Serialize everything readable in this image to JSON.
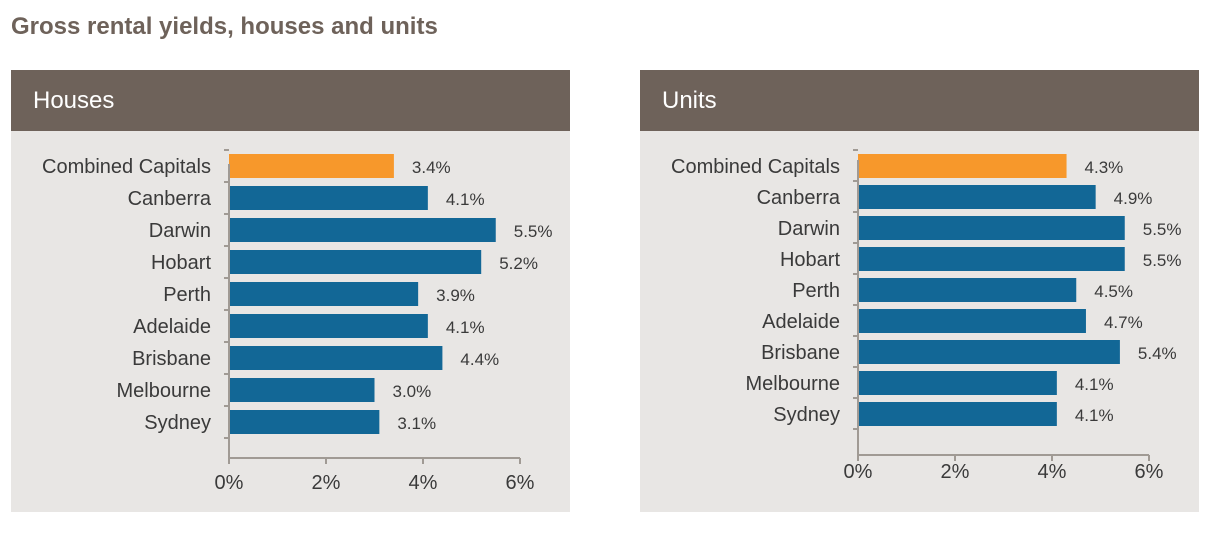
{
  "page_title": "Gross rental yields, houses and units",
  "colors": {
    "highlight": "#f7982b",
    "bar": "#126796",
    "header_bg": "#6e625a",
    "panel_bg": "#e8e6e4",
    "axis": "#a09a94"
  },
  "chart_data": [
    {
      "type": "bar",
      "orientation": "horizontal",
      "title": "Houses",
      "categories": [
        "Combined Capitals",
        "Canberra",
        "Darwin",
        "Hobart",
        "Perth",
        "Adelaide",
        "Brisbane",
        "Melbourne",
        "Sydney"
      ],
      "values": [
        3.4,
        4.1,
        5.5,
        5.2,
        3.9,
        4.1,
        4.4,
        3.0,
        3.1
      ],
      "value_labels": [
        "3.4%",
        "4.1%",
        "5.5%",
        "5.2%",
        "3.9%",
        "4.1%",
        "4.4%",
        "3.0%",
        "3.1%"
      ],
      "highlight_index": 0,
      "xlim": [
        0,
        6
      ],
      "xticks": [
        0,
        2,
        4,
        6
      ],
      "xtick_labels": [
        "0%",
        "2%",
        "4%",
        "6%"
      ],
      "grid": false
    },
    {
      "type": "bar",
      "orientation": "horizontal",
      "title": "Units",
      "categories": [
        "Combined Capitals",
        "Canberra",
        "Darwin",
        "Hobart",
        "Perth",
        "Adelaide",
        "Brisbane",
        "Melbourne",
        "Sydney"
      ],
      "values": [
        4.3,
        4.9,
        5.5,
        5.5,
        4.5,
        4.7,
        5.4,
        4.1,
        4.1
      ],
      "value_labels": [
        "4.3%",
        "4.9%",
        "5.5%",
        "5.5%",
        "4.5%",
        "4.7%",
        "5.4%",
        "4.1%",
        "4.1%"
      ],
      "highlight_index": 0,
      "xlim": [
        0,
        6
      ],
      "xticks": [
        0,
        2,
        4,
        6
      ],
      "xtick_labels": [
        "0%",
        "2%",
        "4%",
        "6%"
      ],
      "grid": false
    }
  ]
}
